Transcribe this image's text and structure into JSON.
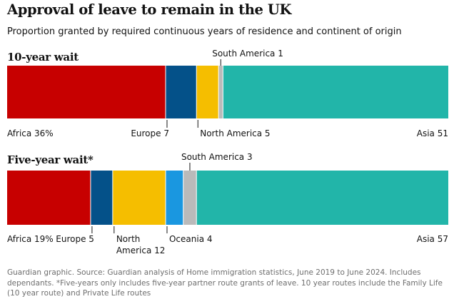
{
  "title": "Approval of leave to remain in the UK",
  "subtitle": "Proportion granted by required continuous years of residence and continent of origin",
  "footer": "Guardian graphic. Source: Guardian analysis of Home immigration statistics, June 2019 to June 2024. Includes dependants. *Five-years only includes five-year partner route grants of leave. 10 year routes include the Family Life (10 year route) and Private Life routes",
  "colors": {
    "Africa": "#c70000",
    "Europe": "#045189",
    "North America": "#f5be00",
    "Oceania": "#1a97e0",
    "South America": "#bababa",
    "Asia": "#22b5a9"
  },
  "chart_data": [
    {
      "type": "bar",
      "stacked": true,
      "orientation": "horizontal",
      "title": "10-year wait",
      "unit": "%",
      "categories": [
        "Africa",
        "Europe",
        "North America",
        "South America",
        "Asia"
      ],
      "values": [
        36,
        7,
        5,
        1,
        51
      ],
      "labels": [
        "Africa 36%",
        "Europe 7",
        "North America 5",
        "South America 1",
        "Asia 51"
      ]
    },
    {
      "type": "bar",
      "stacked": true,
      "orientation": "horizontal",
      "title": "Five-year wait*",
      "unit": "%",
      "categories": [
        "Africa",
        "Europe",
        "North America",
        "Oceania",
        "South America",
        "Asia"
      ],
      "values": [
        19,
        5,
        12,
        4,
        3,
        57
      ],
      "labels": [
        "Africa 19%",
        "Europe 5",
        "North America 12",
        "Oceania 4",
        "South America 3",
        "Asia 57"
      ]
    }
  ]
}
